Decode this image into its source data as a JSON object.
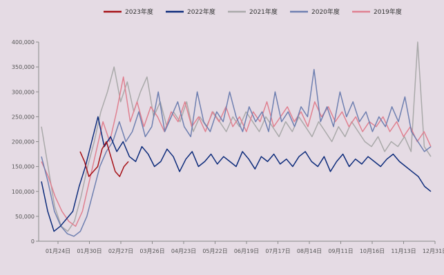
{
  "chart_data": {
    "type": "line",
    "title": "",
    "xlabel": "",
    "ylabel": "",
    "ylim": [
      0,
      400000
    ],
    "y_ticks": [
      "0",
      "50,000",
      "100,000",
      "150,000",
      "200,000",
      "250,000",
      "300,000",
      "350,000",
      "400,000"
    ],
    "x_ticks": [
      "01月24日",
      "01月30日",
      "02月27日",
      "03月26日",
      "04月23日",
      "05月22日",
      "06月19日",
      "07月17日",
      "08月14日",
      "09月11日",
      "10月16日",
      "11月13日",
      "12月31日"
    ],
    "legend_position": "top",
    "grid": false,
    "series": [
      {
        "name": "2023年度",
        "color": "#a50f15",
        "values": [
          180000,
          160000,
          130000,
          140000,
          150000,
          185000,
          200000,
          170000,
          140000,
          130000,
          150000,
          160000
        ]
      },
      {
        "name": "2022年度",
        "color": "#0b2a7a",
        "values": [
          120000,
          60000,
          20000,
          30000,
          45000,
          60000,
          110000,
          150000,
          200000,
          250000,
          190000,
          210000,
          180000,
          200000,
          170000,
          160000,
          190000,
          175000,
          150000,
          160000,
          185000,
          170000,
          140000,
          165000,
          180000,
          150000,
          160000,
          175000,
          155000,
          170000,
          160000,
          150000,
          180000,
          165000,
          145000,
          170000,
          160000,
          175000,
          155000,
          165000,
          150000,
          170000,
          180000,
          160000,
          150000,
          170000,
          140000,
          160000,
          175000,
          150000,
          165000,
          155000,
          170000,
          160000,
          150000,
          165000,
          175000,
          160000,
          150000,
          140000,
          130000,
          110000,
          100000
        ]
      },
      {
        "name": "2021年度",
        "color": "#a9a9a9",
        "values": [
          230000,
          150000,
          70000,
          30000,
          20000,
          40000,
          90000,
          150000,
          200000,
          260000,
          300000,
          350000,
          280000,
          320000,
          260000,
          300000,
          330000,
          250000,
          280000,
          230000,
          260000,
          240000,
          280000,
          220000,
          250000,
          230000,
          260000,
          240000,
          220000,
          250000,
          230000,
          260000,
          240000,
          220000,
          250000,
          230000,
          210000,
          240000,
          220000,
          250000,
          230000,
          210000,
          240000,
          220000,
          200000,
          230000,
          210000,
          240000,
          220000,
          200000,
          190000,
          210000,
          180000,
          200000,
          190000,
          210000,
          180000,
          400000,
          190000,
          170000
        ]
      },
      {
        "name": "2020年度",
        "color": "#6e7fb0",
        "values": [
          170000,
          120000,
          60000,
          30000,
          15000,
          10000,
          20000,
          50000,
          100000,
          150000,
          180000,
          200000,
          240000,
          200000,
          220000,
          260000,
          210000,
          230000,
          300000,
          220000,
          250000,
          280000,
          230000,
          210000,
          300000,
          240000,
          220000,
          260000,
          240000,
          300000,
          250000,
          220000,
          270000,
          240000,
          260000,
          220000,
          300000,
          240000,
          260000,
          230000,
          270000,
          250000,
          345000,
          240000,
          270000,
          230000,
          300000,
          250000,
          280000,
          240000,
          260000,
          220000,
          250000,
          230000,
          270000,
          240000,
          290000,
          220000,
          200000,
          180000,
          190000
        ]
      },
      {
        "name": "2019年度",
        "color": "#e08090",
        "values": [
          160000,
          130000,
          90000,
          60000,
          40000,
          30000,
          60000,
          120000,
          180000,
          240000,
          200000,
          260000,
          330000,
          240000,
          280000,
          230000,
          270000,
          250000,
          220000,
          260000,
          240000,
          280000,
          230000,
          250000,
          220000,
          260000,
          240000,
          270000,
          230000,
          250000,
          220000,
          260000,
          240000,
          280000,
          230000,
          250000,
          270000,
          240000,
          260000,
          230000,
          280000,
          250000,
          270000,
          240000,
          260000,
          230000,
          250000,
          220000,
          240000,
          230000,
          250000,
          220000,
          240000,
          210000,
          230000,
          200000,
          220000,
          190000
        ]
      }
    ]
  }
}
